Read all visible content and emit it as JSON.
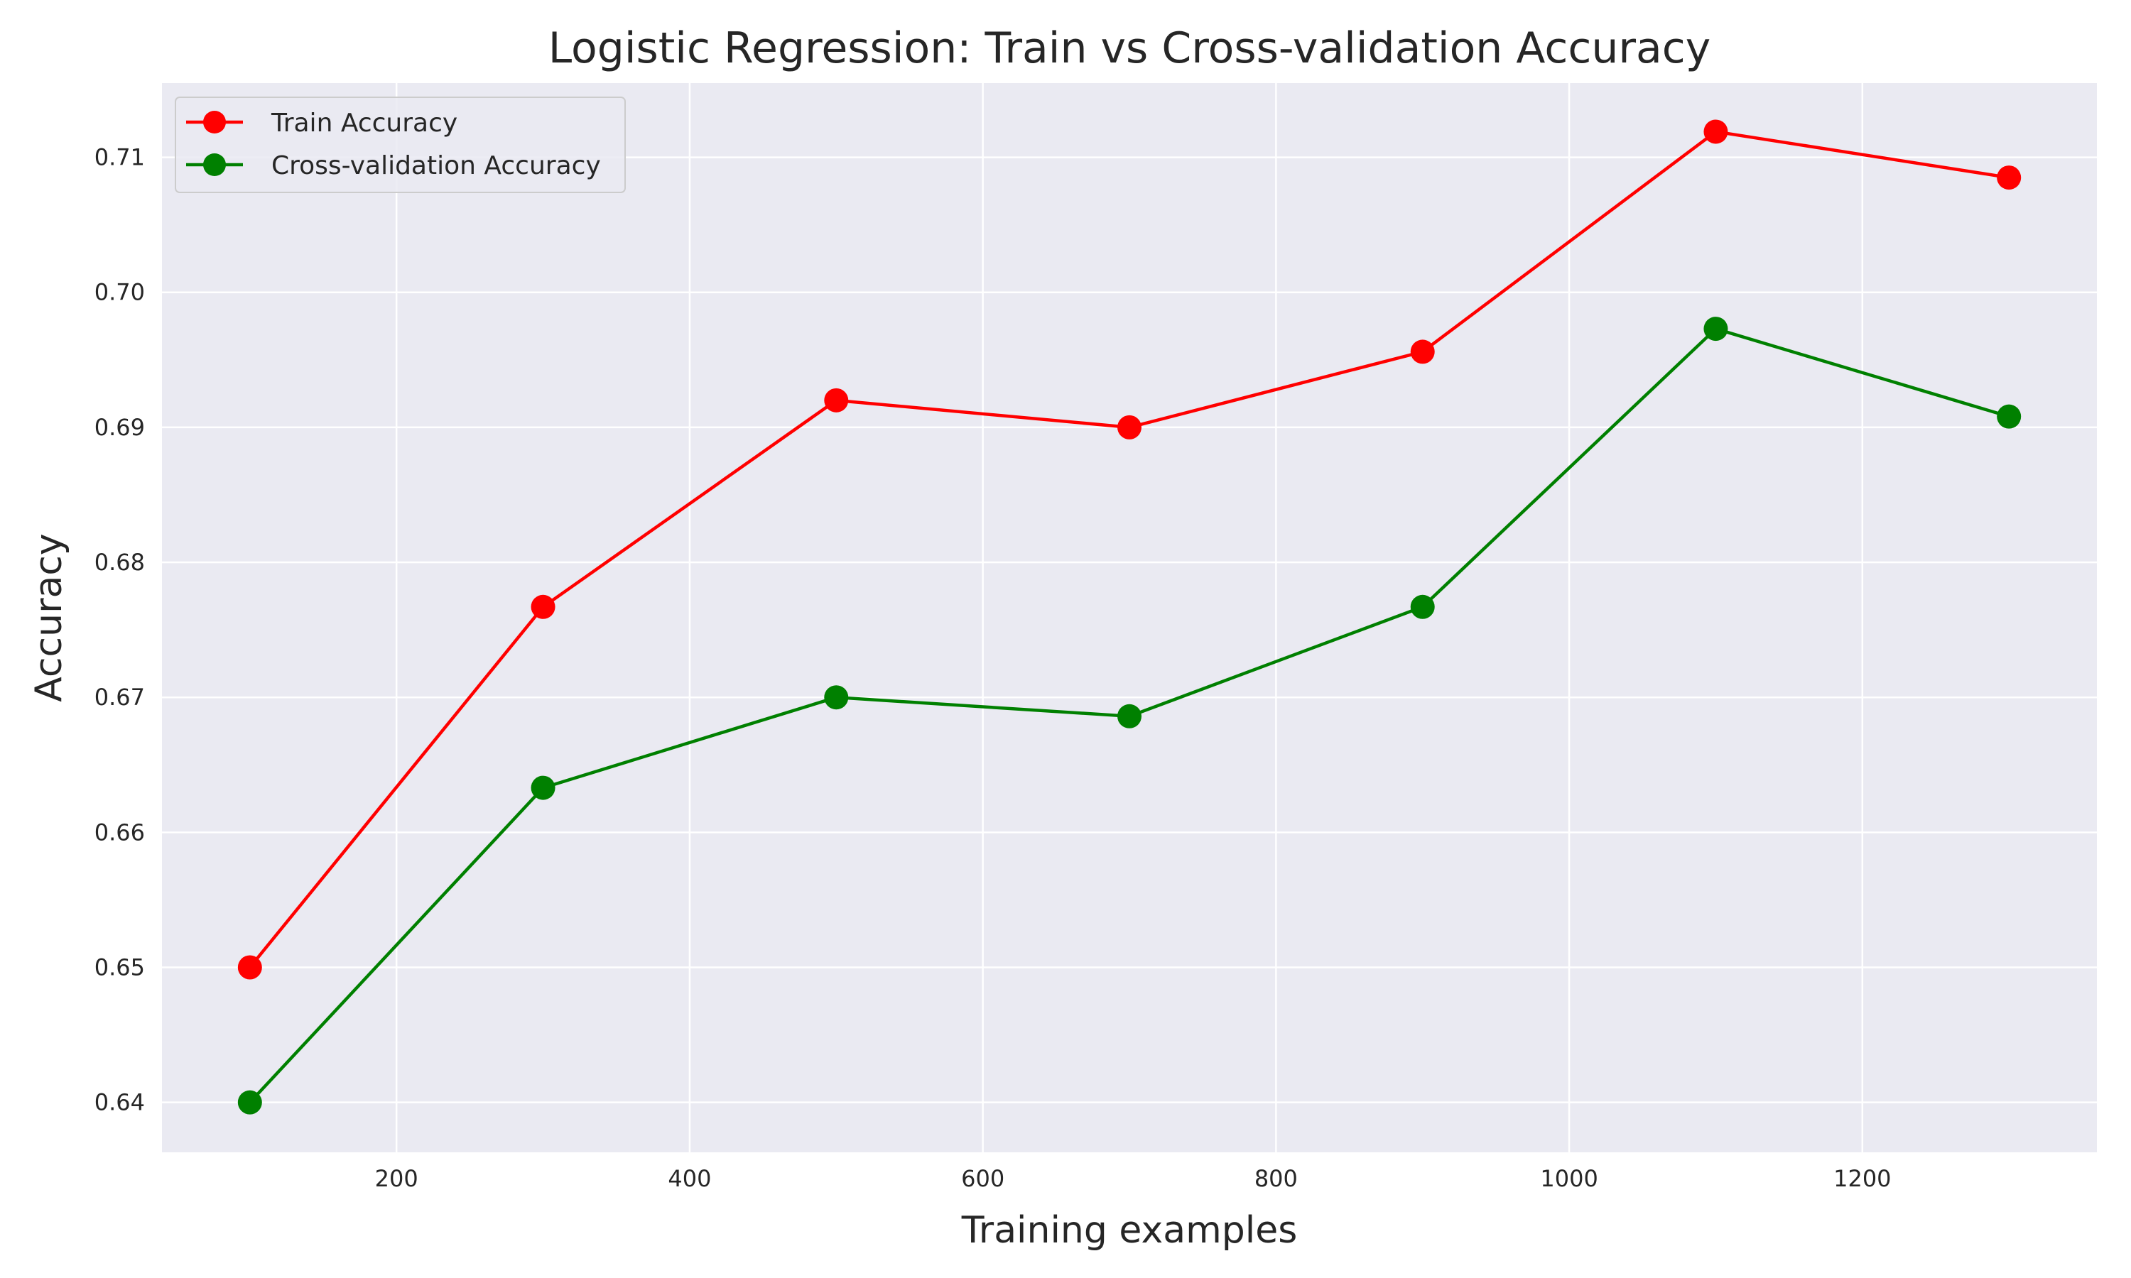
{
  "chart_data": {
    "type": "line",
    "title": "Logistic Regression: Train vs Cross-validation Accuracy",
    "xlabel": "Training examples",
    "ylabel": "Accuracy",
    "x": [
      100,
      300,
      500,
      700,
      900,
      1100,
      1300
    ],
    "xlim": [
      40,
      1360
    ],
    "ylim": [
      0.6363,
      0.7155
    ],
    "xticks": [
      200,
      400,
      600,
      800,
      1000,
      1200
    ],
    "yticks": [
      0.64,
      0.65,
      0.66,
      0.67,
      0.68,
      0.69,
      0.7,
      0.71
    ],
    "xtick_labels": [
      "200",
      "400",
      "600",
      "800",
      "1000",
      "1200"
    ],
    "ytick_labels": [
      "0.64",
      "0.65",
      "0.66",
      "0.67",
      "0.68",
      "0.69",
      "0.70",
      "0.71"
    ],
    "grid": true,
    "legend_position": "top-left",
    "series": [
      {
        "name": "Train Accuracy",
        "color": "#ff0000",
        "values": [
          0.65,
          0.6767,
          0.692,
          0.69,
          0.6956,
          0.7119,
          0.7085
        ]
      },
      {
        "name": "Cross-validation Accuracy",
        "color": "#008000",
        "values": [
          0.64,
          0.6633,
          0.67,
          0.6686,
          0.6767,
          0.6973,
          0.6908
        ]
      }
    ],
    "background": "#eaeaf2",
    "grid_color": "#ffffff"
  }
}
